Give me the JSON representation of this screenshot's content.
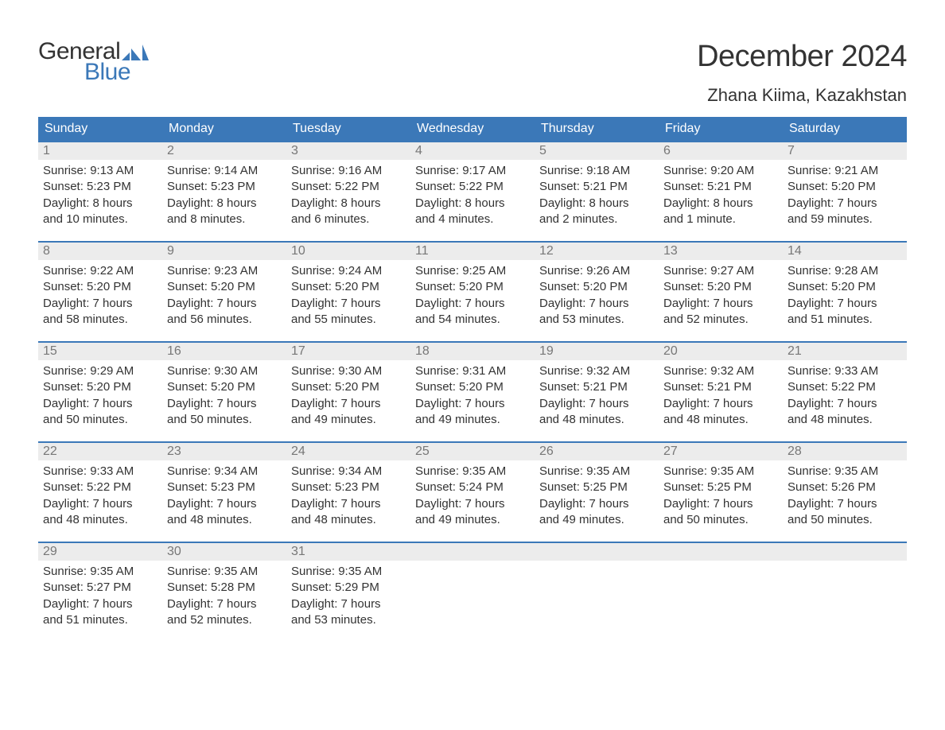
{
  "brand": {
    "part1": "General",
    "part2": "Blue",
    "flag_color": "#3b78b8"
  },
  "title": "December 2024",
  "location": "Zhana Kiima, Kazakhstan",
  "colors": {
    "header_bg": "#3b78b8",
    "header_text": "#ffffff",
    "daynum_bg": "#ececec",
    "daynum_text": "#777777",
    "body_text": "#333333",
    "rule": "#3b78b8",
    "page_bg": "#ffffff"
  },
  "typography": {
    "title_fontsize": 38,
    "location_fontsize": 22,
    "weekday_fontsize": 16,
    "daynum_fontsize": 16,
    "body_fontsize": 15
  },
  "weekdays": [
    "Sunday",
    "Monday",
    "Tuesday",
    "Wednesday",
    "Thursday",
    "Friday",
    "Saturday"
  ],
  "weeks": [
    [
      {
        "n": "1",
        "sunrise": "Sunrise: 9:13 AM",
        "sunset": "Sunset: 5:23 PM",
        "d1": "Daylight: 8 hours",
        "d2": "and 10 minutes."
      },
      {
        "n": "2",
        "sunrise": "Sunrise: 9:14 AM",
        "sunset": "Sunset: 5:23 PM",
        "d1": "Daylight: 8 hours",
        "d2": "and 8 minutes."
      },
      {
        "n": "3",
        "sunrise": "Sunrise: 9:16 AM",
        "sunset": "Sunset: 5:22 PM",
        "d1": "Daylight: 8 hours",
        "d2": "and 6 minutes."
      },
      {
        "n": "4",
        "sunrise": "Sunrise: 9:17 AM",
        "sunset": "Sunset: 5:22 PM",
        "d1": "Daylight: 8 hours",
        "d2": "and 4 minutes."
      },
      {
        "n": "5",
        "sunrise": "Sunrise: 9:18 AM",
        "sunset": "Sunset: 5:21 PM",
        "d1": "Daylight: 8 hours",
        "d2": "and 2 minutes."
      },
      {
        "n": "6",
        "sunrise": "Sunrise: 9:20 AM",
        "sunset": "Sunset: 5:21 PM",
        "d1": "Daylight: 8 hours",
        "d2": "and 1 minute."
      },
      {
        "n": "7",
        "sunrise": "Sunrise: 9:21 AM",
        "sunset": "Sunset: 5:20 PM",
        "d1": "Daylight: 7 hours",
        "d2": "and 59 minutes."
      }
    ],
    [
      {
        "n": "8",
        "sunrise": "Sunrise: 9:22 AM",
        "sunset": "Sunset: 5:20 PM",
        "d1": "Daylight: 7 hours",
        "d2": "and 58 minutes."
      },
      {
        "n": "9",
        "sunrise": "Sunrise: 9:23 AM",
        "sunset": "Sunset: 5:20 PM",
        "d1": "Daylight: 7 hours",
        "d2": "and 56 minutes."
      },
      {
        "n": "10",
        "sunrise": "Sunrise: 9:24 AM",
        "sunset": "Sunset: 5:20 PM",
        "d1": "Daylight: 7 hours",
        "d2": "and 55 minutes."
      },
      {
        "n": "11",
        "sunrise": "Sunrise: 9:25 AM",
        "sunset": "Sunset: 5:20 PM",
        "d1": "Daylight: 7 hours",
        "d2": "and 54 minutes."
      },
      {
        "n": "12",
        "sunrise": "Sunrise: 9:26 AM",
        "sunset": "Sunset: 5:20 PM",
        "d1": "Daylight: 7 hours",
        "d2": "and 53 minutes."
      },
      {
        "n": "13",
        "sunrise": "Sunrise: 9:27 AM",
        "sunset": "Sunset: 5:20 PM",
        "d1": "Daylight: 7 hours",
        "d2": "and 52 minutes."
      },
      {
        "n": "14",
        "sunrise": "Sunrise: 9:28 AM",
        "sunset": "Sunset: 5:20 PM",
        "d1": "Daylight: 7 hours",
        "d2": "and 51 minutes."
      }
    ],
    [
      {
        "n": "15",
        "sunrise": "Sunrise: 9:29 AM",
        "sunset": "Sunset: 5:20 PM",
        "d1": "Daylight: 7 hours",
        "d2": "and 50 minutes."
      },
      {
        "n": "16",
        "sunrise": "Sunrise: 9:30 AM",
        "sunset": "Sunset: 5:20 PM",
        "d1": "Daylight: 7 hours",
        "d2": "and 50 minutes."
      },
      {
        "n": "17",
        "sunrise": "Sunrise: 9:30 AM",
        "sunset": "Sunset: 5:20 PM",
        "d1": "Daylight: 7 hours",
        "d2": "and 49 minutes."
      },
      {
        "n": "18",
        "sunrise": "Sunrise: 9:31 AM",
        "sunset": "Sunset: 5:20 PM",
        "d1": "Daylight: 7 hours",
        "d2": "and 49 minutes."
      },
      {
        "n": "19",
        "sunrise": "Sunrise: 9:32 AM",
        "sunset": "Sunset: 5:21 PM",
        "d1": "Daylight: 7 hours",
        "d2": "and 48 minutes."
      },
      {
        "n": "20",
        "sunrise": "Sunrise: 9:32 AM",
        "sunset": "Sunset: 5:21 PM",
        "d1": "Daylight: 7 hours",
        "d2": "and 48 minutes."
      },
      {
        "n": "21",
        "sunrise": "Sunrise: 9:33 AM",
        "sunset": "Sunset: 5:22 PM",
        "d1": "Daylight: 7 hours",
        "d2": "and 48 minutes."
      }
    ],
    [
      {
        "n": "22",
        "sunrise": "Sunrise: 9:33 AM",
        "sunset": "Sunset: 5:22 PM",
        "d1": "Daylight: 7 hours",
        "d2": "and 48 minutes."
      },
      {
        "n": "23",
        "sunrise": "Sunrise: 9:34 AM",
        "sunset": "Sunset: 5:23 PM",
        "d1": "Daylight: 7 hours",
        "d2": "and 48 minutes."
      },
      {
        "n": "24",
        "sunrise": "Sunrise: 9:34 AM",
        "sunset": "Sunset: 5:23 PM",
        "d1": "Daylight: 7 hours",
        "d2": "and 48 minutes."
      },
      {
        "n": "25",
        "sunrise": "Sunrise: 9:35 AM",
        "sunset": "Sunset: 5:24 PM",
        "d1": "Daylight: 7 hours",
        "d2": "and 49 minutes."
      },
      {
        "n": "26",
        "sunrise": "Sunrise: 9:35 AM",
        "sunset": "Sunset: 5:25 PM",
        "d1": "Daylight: 7 hours",
        "d2": "and 49 minutes."
      },
      {
        "n": "27",
        "sunrise": "Sunrise: 9:35 AM",
        "sunset": "Sunset: 5:25 PM",
        "d1": "Daylight: 7 hours",
        "d2": "and 50 minutes."
      },
      {
        "n": "28",
        "sunrise": "Sunrise: 9:35 AM",
        "sunset": "Sunset: 5:26 PM",
        "d1": "Daylight: 7 hours",
        "d2": "and 50 minutes."
      }
    ],
    [
      {
        "n": "29",
        "sunrise": "Sunrise: 9:35 AM",
        "sunset": "Sunset: 5:27 PM",
        "d1": "Daylight: 7 hours",
        "d2": "and 51 minutes."
      },
      {
        "n": "30",
        "sunrise": "Sunrise: 9:35 AM",
        "sunset": "Sunset: 5:28 PM",
        "d1": "Daylight: 7 hours",
        "d2": "and 52 minutes."
      },
      {
        "n": "31",
        "sunrise": "Sunrise: 9:35 AM",
        "sunset": "Sunset: 5:29 PM",
        "d1": "Daylight: 7 hours",
        "d2": "and 53 minutes."
      },
      {
        "empty": true
      },
      {
        "empty": true
      },
      {
        "empty": true
      },
      {
        "empty": true
      }
    ]
  ]
}
